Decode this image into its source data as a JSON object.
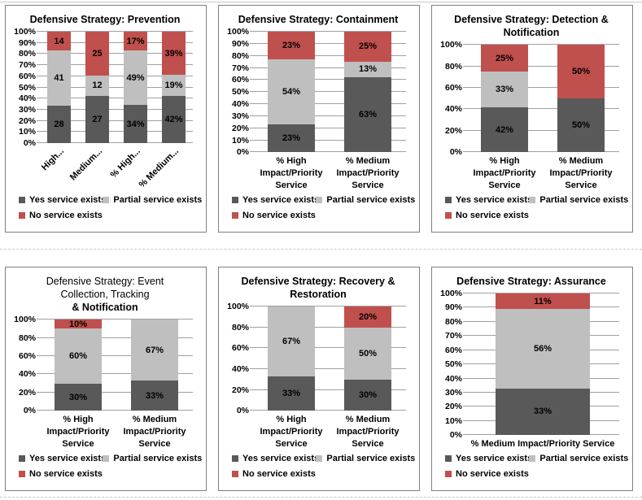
{
  "series_meta": [
    {
      "key": "yes",
      "name": "Yes service exists",
      "color": "#595959"
    },
    {
      "key": "partial",
      "name": "Partial service exists",
      "color": "#BFBFBF"
    },
    {
      "key": "no",
      "name": "No service exists",
      "color": "#C0504D"
    }
  ],
  "legend_rows": [
    [
      "Yes service exists",
      "Partial service exists"
    ],
    [
      "No service exists"
    ]
  ],
  "chart_data": [
    {
      "id": "prevention",
      "type": "bar",
      "stacked": "percent",
      "title": "Defensive Strategy: Prevention",
      "title_lines": [
        {
          "text": "Defensive Strategy: Prevention",
          "bold": true
        }
      ],
      "ylim": [
        0,
        100
      ],
      "y_ticks": [
        "0%",
        "10%",
        "20%",
        "30%",
        "40%",
        "50%",
        "60%",
        "70%",
        "80%",
        "90%",
        "100%"
      ],
      "rotated_category_labels": true,
      "categories": [
        "High...",
        "Medium...",
        "% High...",
        "% Medium..."
      ],
      "category_lines": [
        [
          "High..."
        ],
        [
          "Medium..."
        ],
        [
          "% High..."
        ],
        [
          "% Medium..."
        ]
      ],
      "series": [
        {
          "name": "Yes service exists",
          "values": [
            28,
            27,
            34,
            42
          ],
          "labels": [
            "28",
            "27",
            "34%",
            "42%"
          ]
        },
        {
          "name": "Partial service exists",
          "values": [
            41,
            12,
            49,
            19
          ],
          "labels": [
            "41",
            "12",
            "49%",
            "19%"
          ]
        },
        {
          "name": "No service exists",
          "values": [
            14,
            25,
            17,
            39
          ],
          "labels": [
            "14",
            "25",
            "17%",
            "39%"
          ]
        }
      ]
    },
    {
      "id": "containment",
      "type": "bar",
      "stacked": "percent",
      "title": "Defensive Strategy: Containment",
      "title_lines": [
        {
          "text": "Defensive Strategy: Containment",
          "bold": true
        }
      ],
      "ylim": [
        0,
        100
      ],
      "y_ticks": [
        "0%",
        "10%",
        "20%",
        "30%",
        "40%",
        "50%",
        "60%",
        "70%",
        "80%",
        "90%",
        "100%"
      ],
      "rotated_category_labels": false,
      "categories": [
        "% High Impact/Priority Service",
        "% Medium Impact/Priority Service"
      ],
      "category_lines": [
        [
          "% High",
          "Impact/Priority",
          "Service"
        ],
        [
          "% Medium",
          "Impact/Priority",
          "Service"
        ]
      ],
      "series": [
        {
          "name": "Yes service exists",
          "values": [
            23,
            63
          ],
          "labels": [
            "23%",
            "63%"
          ]
        },
        {
          "name": "Partial service exists",
          "values": [
            54,
            13
          ],
          "labels": [
            "54%",
            "13%"
          ]
        },
        {
          "name": "No service exists",
          "values": [
            23,
            25
          ],
          "labels": [
            "23%",
            "25%"
          ]
        }
      ]
    },
    {
      "id": "detection-notification",
      "type": "bar",
      "stacked": "percent",
      "title": "Defensive Strategy: Detection & Notification",
      "title_lines": [
        {
          "text": "Defensive Strategy: Detection &",
          "bold": true
        },
        {
          "text": "Notification",
          "bold": true
        }
      ],
      "ylim": [
        0,
        100
      ],
      "y_ticks": [
        "0%",
        "20%",
        "40%",
        "60%",
        "80%",
        "100%"
      ],
      "rotated_category_labels": false,
      "categories": [
        "% High Impact/Priority Service",
        "% Medium Impact/Priority Service"
      ],
      "category_lines": [
        [
          "% High",
          "Impact/Priority",
          "Service"
        ],
        [
          "% Medium",
          "Impact/Priority",
          "Service"
        ]
      ],
      "series": [
        {
          "name": "Yes service exists",
          "values": [
            42,
            50
          ],
          "labels": [
            "42%",
            "50%"
          ]
        },
        {
          "name": "Partial service exists",
          "values": [
            33,
            0
          ],
          "labels": [
            "33%",
            ""
          ]
        },
        {
          "name": "No service exists",
          "values": [
            25,
            50
          ],
          "labels": [
            "25%",
            "50%"
          ]
        }
      ]
    },
    {
      "id": "event-collection-tracking-notification",
      "type": "bar",
      "stacked": "percent",
      "title": "Defensive Strategy: Event Collection, Tracking & Notification",
      "title_lines": [
        {
          "text": "Defensive Strategy: Event",
          "bold": false
        },
        {
          "text": "Collection, Tracking",
          "bold": false
        },
        {
          "text": "& Notification",
          "bold": true
        }
      ],
      "ylim": [
        0,
        100
      ],
      "y_ticks": [
        "0%",
        "20%",
        "40%",
        "60%",
        "80%",
        "100%"
      ],
      "rotated_category_labels": false,
      "categories": [
        "% High Impact/Priority Service",
        "% Medium Impact/Priority Service"
      ],
      "category_lines": [
        [
          "% High",
          "Impact/Priority",
          "Service"
        ],
        [
          "% Medium",
          "Impact/Priority",
          "Service"
        ]
      ],
      "series": [
        {
          "name": "Yes service exists",
          "values": [
            30,
            33
          ],
          "labels": [
            "30%",
            "33%"
          ]
        },
        {
          "name": "Partial service exists",
          "values": [
            60,
            67
          ],
          "labels": [
            "60%",
            "67%"
          ]
        },
        {
          "name": "No service exists",
          "values": [
            10,
            0
          ],
          "labels": [
            "10%",
            ""
          ]
        }
      ]
    },
    {
      "id": "recovery-restoration",
      "type": "bar",
      "stacked": "percent",
      "title": "Defensive Strategy: Recovery & Restoration",
      "title_lines": [
        {
          "text": "Defensive Strategy: Recovery &",
          "bold": true
        },
        {
          "text": "Restoration",
          "bold": true
        }
      ],
      "ylim": [
        0,
        100
      ],
      "y_ticks": [
        "0%",
        "20%",
        "40%",
        "60%",
        "80%",
        "100%"
      ],
      "rotated_category_labels": false,
      "categories": [
        "% High Impact/Priority Service",
        "% Medium Impact/Priority Service"
      ],
      "category_lines": [
        [
          "% High",
          "Impact/Priority",
          "Service"
        ],
        [
          "% Medium",
          "Impact/Priority",
          "Service"
        ]
      ],
      "series": [
        {
          "name": "Yes service exists",
          "values": [
            33,
            30
          ],
          "labels": [
            "33%",
            "30%"
          ]
        },
        {
          "name": "Partial service exists",
          "values": [
            67,
            50
          ],
          "labels": [
            "67%",
            "50%"
          ]
        },
        {
          "name": "No service exists",
          "values": [
            0,
            20
          ],
          "labels": [
            "",
            "20%"
          ]
        }
      ]
    },
    {
      "id": "assurance",
      "type": "bar",
      "stacked": "percent",
      "title": "Defensive Strategy: Assurance",
      "title_lines": [
        {
          "text": "Defensive Strategy: Assurance",
          "bold": true
        }
      ],
      "ylim": [
        0,
        100
      ],
      "y_ticks": [
        "0%",
        "10%",
        "20%",
        "30%",
        "40%",
        "50%",
        "60%",
        "70%",
        "80%",
        "90%",
        "100%"
      ],
      "rotated_category_labels": false,
      "categories": [
        "% Medium Impact/Priority Service"
      ],
      "category_lines": [
        [
          "% Medium Impact/Priority Service"
        ]
      ],
      "series": [
        {
          "name": "Yes service exists",
          "values": [
            33
          ],
          "labels": [
            "33%"
          ]
        },
        {
          "name": "Partial service exists",
          "values": [
            56
          ],
          "labels": [
            "56%"
          ]
        },
        {
          "name": "No service exists",
          "values": [
            11
          ],
          "labels": [
            "11%"
          ]
        }
      ]
    }
  ]
}
